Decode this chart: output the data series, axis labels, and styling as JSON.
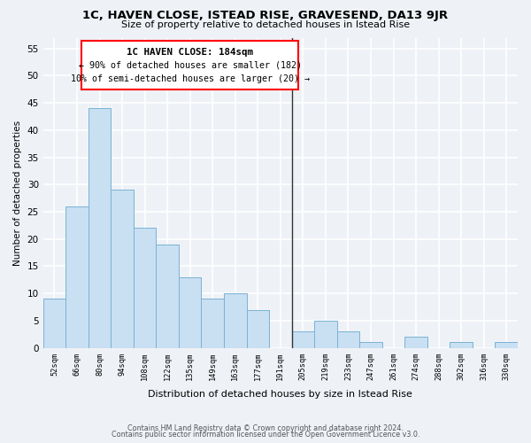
{
  "title": "1C, HAVEN CLOSE, ISTEAD RISE, GRAVESEND, DA13 9JR",
  "subtitle": "Size of property relative to detached houses in Istead Rise",
  "xlabel": "Distribution of detached houses by size in Istead Rise",
  "ylabel": "Number of detached properties",
  "bin_labels": [
    "52sqm",
    "66sqm",
    "80sqm",
    "94sqm",
    "108sqm",
    "122sqm",
    "135sqm",
    "149sqm",
    "163sqm",
    "177sqm",
    "191sqm",
    "205sqm",
    "219sqm",
    "233sqm",
    "247sqm",
    "261sqm",
    "274sqm",
    "288sqm",
    "302sqm",
    "316sqm",
    "330sqm"
  ],
  "bar_heights": [
    9,
    26,
    44,
    29,
    22,
    19,
    13,
    9,
    10,
    7,
    0,
    3,
    5,
    3,
    1,
    0,
    2,
    0,
    1,
    0,
    1
  ],
  "bar_color": "#c9dff2",
  "bar_edge_color": "#7ab3d4",
  "vline_x": 10.5,
  "vline_color": "#333333",
  "annotation_title": "1C HAVEN CLOSE: 184sqm",
  "annotation_line1": "← 90% of detached houses are smaller (182)",
  "annotation_line2": "10% of semi-detached houses are larger (20) →",
  "annotation_border_color": "red",
  "ylim": [
    0,
    57
  ],
  "yticks": [
    0,
    5,
    10,
    15,
    20,
    25,
    30,
    35,
    40,
    45,
    50,
    55
  ],
  "footer_line1": "Contains HM Land Registry data © Crown copyright and database right 2024.",
  "footer_line2": "Contains public sector information licensed under the Open Government Licence v3.0.",
  "bg_color": "#eef2f7",
  "grid_color": "#ffffff"
}
